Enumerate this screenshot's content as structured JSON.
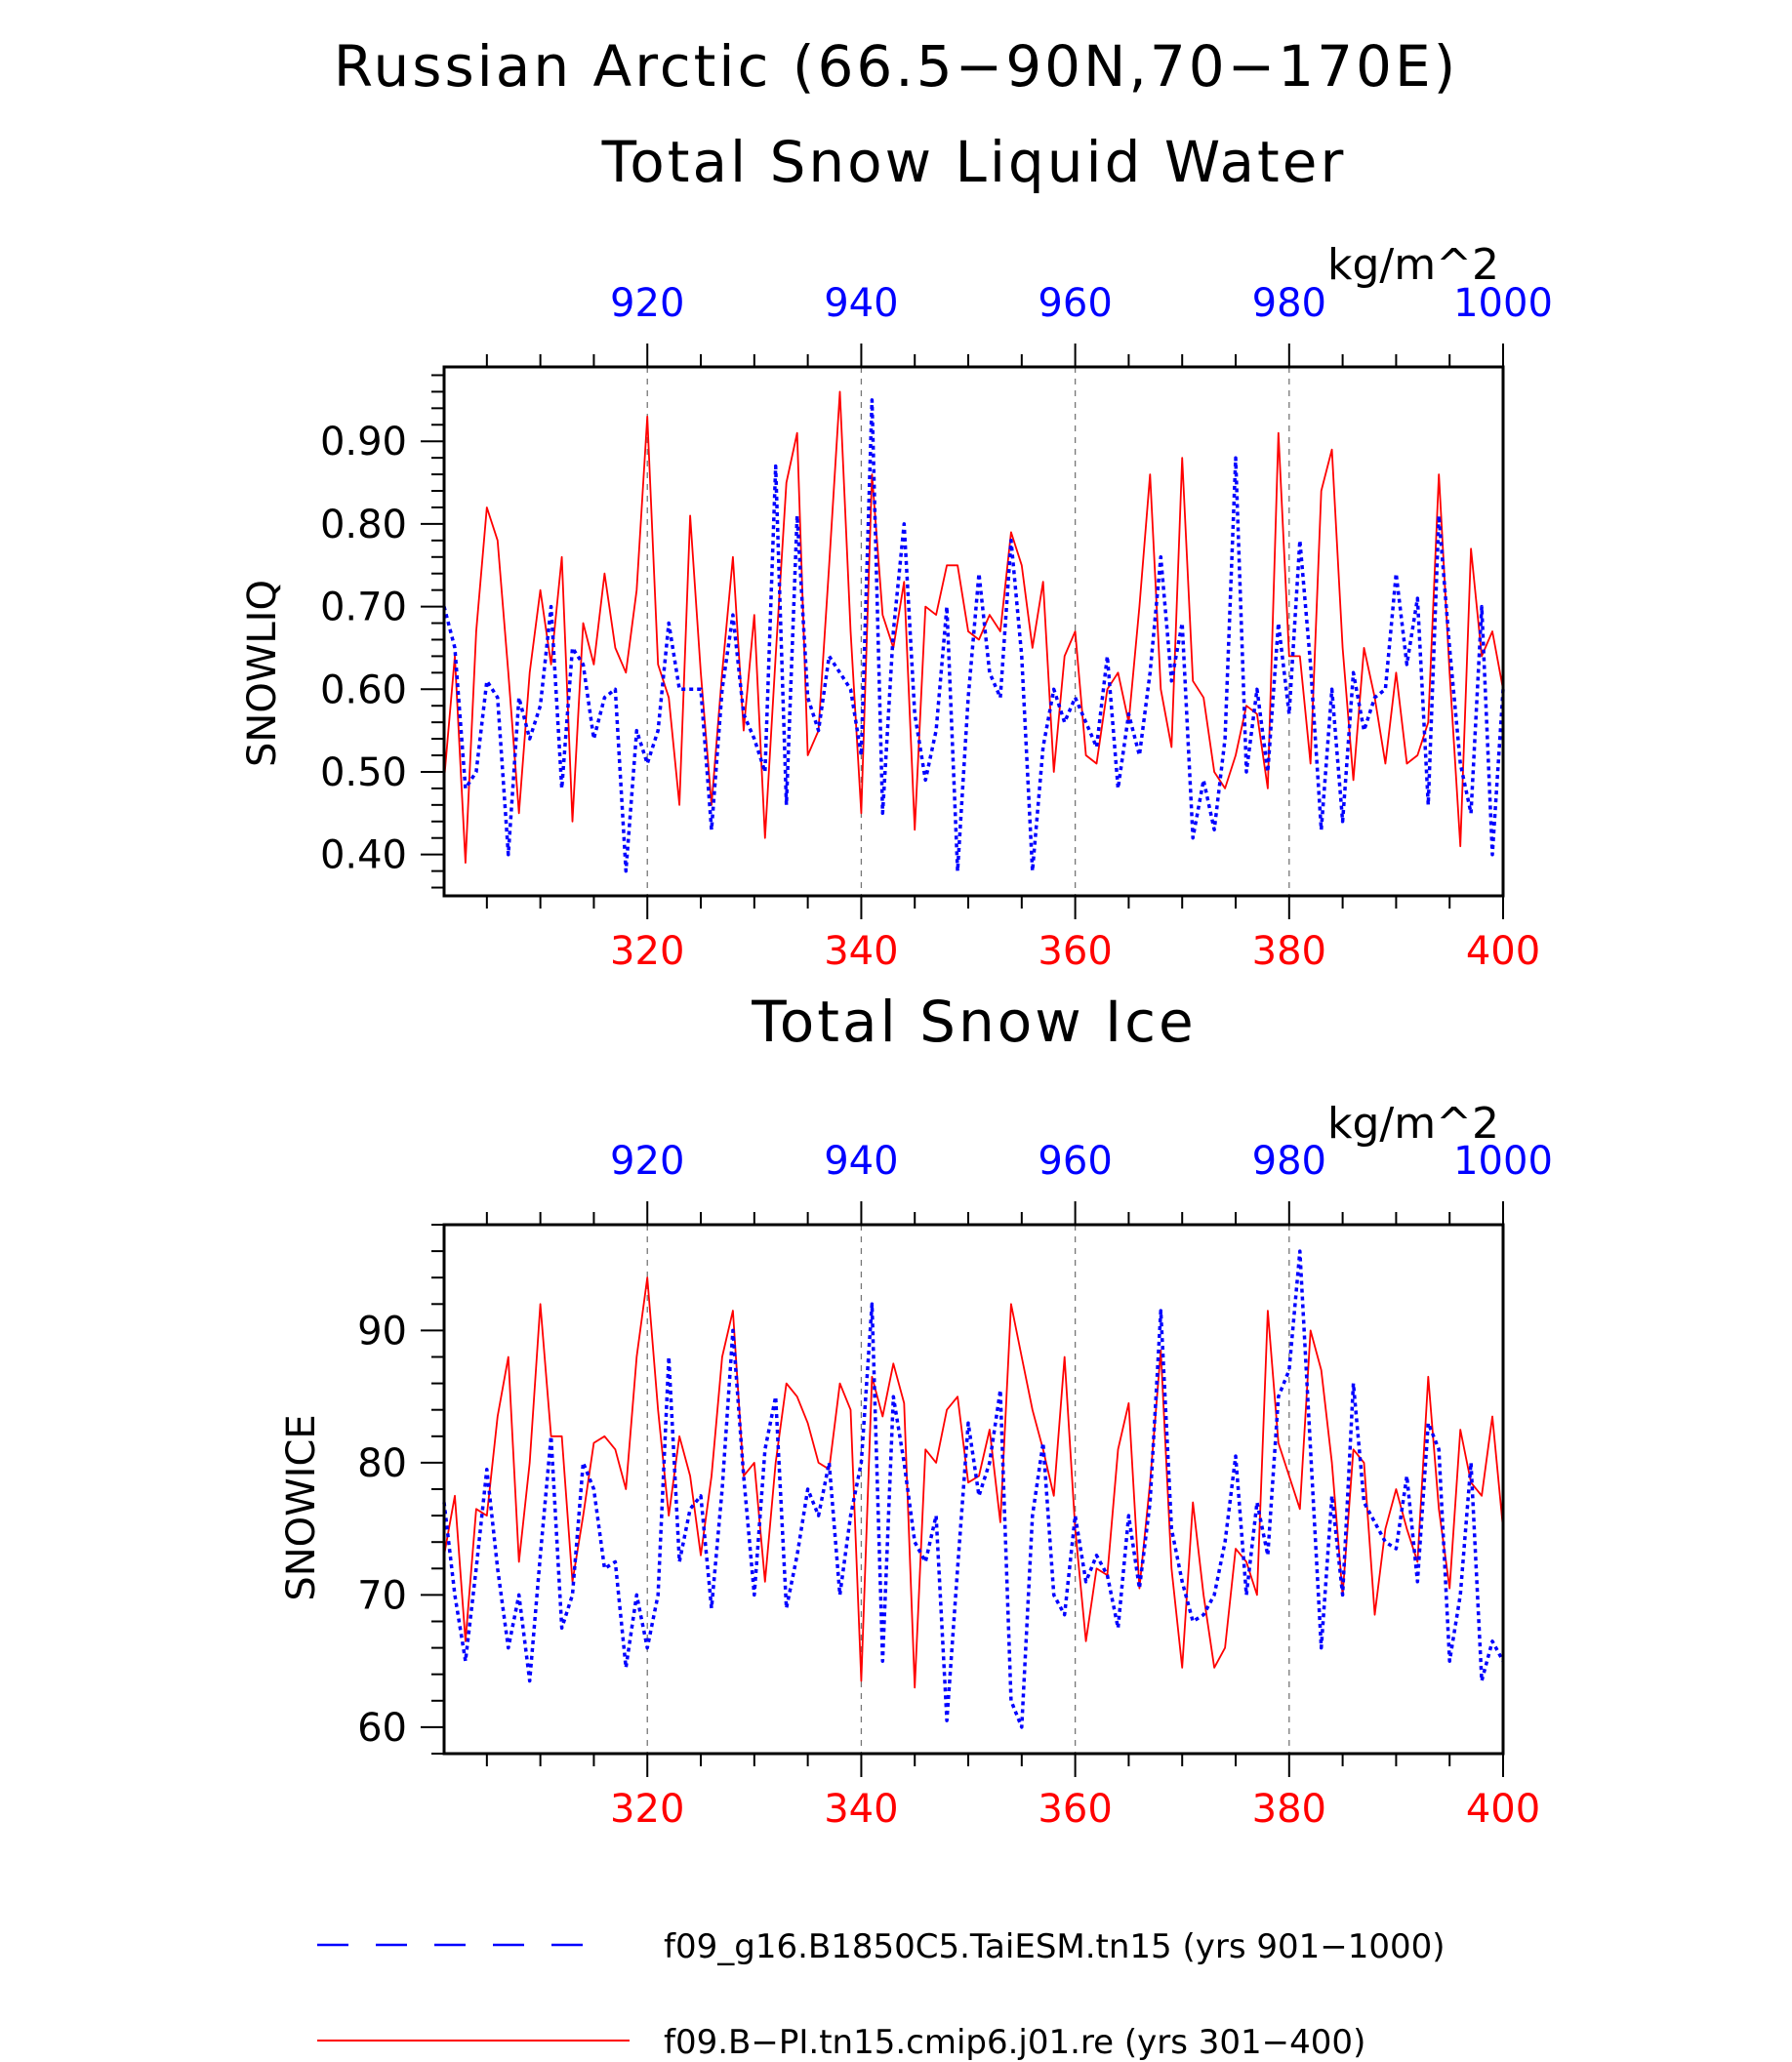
{
  "page": {
    "title_line1": "Russian Arctic (66.5−90N,70−170E)"
  },
  "colors": {
    "red": "#ff0000",
    "blue": "#0000ff",
    "axis": "#000000",
    "grid": "#777777"
  },
  "legend": {
    "position": "bottom-left",
    "entries": [
      {
        "label": "f09_g16.B1850C5.TaiESM.tn15 (yrs 901−1000)",
        "color": "#0000ff",
        "style": "dashed"
      },
      {
        "label": "f09.B−PI.tn15.cmip6.j01.re (yrs 301−400)",
        "color": "#ff0000",
        "style": "solid"
      }
    ]
  },
  "chart_data": [
    {
      "type": "line",
      "title": "Total Snow Liquid Water",
      "units_label": "kg/m^2",
      "ylabel": "SNOWLIQ",
      "ylim": [
        0.35,
        0.99
      ],
      "yticks": [
        "0.40",
        "0.50",
        "0.60",
        "0.70",
        "0.80",
        "0.90"
      ],
      "yticks_values": [
        0.4,
        0.5,
        0.6,
        0.7,
        0.8,
        0.9
      ],
      "x_bottom": {
        "range": [
          301,
          400
        ],
        "ticks": [
          320,
          340,
          360,
          380,
          400
        ],
        "color": "#ff0000"
      },
      "x_top": {
        "range": [
          901,
          1000
        ],
        "ticks": [
          920,
          940,
          960,
          980,
          1000
        ],
        "color": "#0000ff"
      },
      "vertical_grid": [
        320,
        340,
        360,
        380
      ],
      "series": [
        {
          "color": "#ff0000",
          "style": "solid",
          "axis": "bottom",
          "x_start": 301,
          "values": [
            0.49,
            0.64,
            0.39,
            0.67,
            0.82,
            0.78,
            0.62,
            0.45,
            0.62,
            0.72,
            0.63,
            0.76,
            0.44,
            0.68,
            0.63,
            0.74,
            0.65,
            0.62,
            0.72,
            0.93,
            0.63,
            0.59,
            0.46,
            0.81,
            0.62,
            0.46,
            0.62,
            0.76,
            0.55,
            0.69,
            0.42,
            0.64,
            0.85,
            0.91,
            0.52,
            0.55,
            0.75,
            0.96,
            0.67,
            0.45,
            0.86,
            0.69,
            0.65,
            0.73,
            0.43,
            0.7,
            0.69,
            0.75,
            0.75,
            0.67,
            0.66,
            0.69,
            0.67,
            0.79,
            0.75,
            0.65,
            0.73,
            0.5,
            0.64,
            0.67,
            0.52,
            0.51,
            0.6,
            0.62,
            0.56,
            0.7,
            0.86,
            0.6,
            0.53,
            0.88,
            0.61,
            0.59,
            0.5,
            0.48,
            0.52,
            0.58,
            0.57,
            0.48,
            0.91,
            0.64,
            0.64,
            0.51,
            0.84,
            0.89,
            0.65,
            0.49,
            0.65,
            0.59,
            0.51,
            0.62,
            0.51,
            0.52,
            0.56,
            0.86,
            0.62,
            0.41,
            0.77,
            0.64,
            0.67,
            0.6
          ]
        },
        {
          "color": "#0000ff",
          "style": "dashed",
          "axis": "top",
          "x_start": 901,
          "values": [
            0.7,
            0.65,
            0.48,
            0.5,
            0.61,
            0.59,
            0.4,
            0.59,
            0.54,
            0.58,
            0.7,
            0.48,
            0.65,
            0.63,
            0.54,
            0.59,
            0.6,
            0.38,
            0.55,
            0.51,
            0.55,
            0.68,
            0.6,
            0.6,
            0.6,
            0.43,
            0.6,
            0.69,
            0.57,
            0.54,
            0.5,
            0.87,
            0.46,
            0.81,
            0.59,
            0.55,
            0.64,
            0.62,
            0.6,
            0.52,
            0.95,
            0.45,
            0.67,
            0.8,
            0.57,
            0.49,
            0.55,
            0.7,
            0.38,
            0.59,
            0.74,
            0.62,
            0.59,
            0.78,
            0.64,
            0.38,
            0.53,
            0.6,
            0.56,
            0.59,
            0.56,
            0.53,
            0.64,
            0.48,
            0.57,
            0.52,
            0.62,
            0.76,
            0.61,
            0.68,
            0.42,
            0.49,
            0.43,
            0.54,
            0.88,
            0.5,
            0.6,
            0.5,
            0.68,
            0.57,
            0.78,
            0.63,
            0.43,
            0.6,
            0.44,
            0.62,
            0.55,
            0.59,
            0.6,
            0.74,
            0.63,
            0.71,
            0.46,
            0.81,
            0.65,
            0.51,
            0.45,
            0.7,
            0.4,
            0.6
          ]
        }
      ]
    },
    {
      "type": "line",
      "title": "Total Snow Ice",
      "units_label": "kg/m^2",
      "ylabel": "SNOWICE",
      "ylim": [
        58,
        98
      ],
      "yticks": [
        "60",
        "70",
        "80",
        "90"
      ],
      "yticks_values": [
        60,
        70,
        80,
        90
      ],
      "x_bottom": {
        "range": [
          301,
          400
        ],
        "ticks": [
          320,
          340,
          360,
          380,
          400
        ],
        "color": "#ff0000"
      },
      "x_top": {
        "range": [
          901,
          1000
        ],
        "ticks": [
          920,
          940,
          960,
          980,
          1000
        ],
        "color": "#0000ff"
      },
      "vertical_grid": [
        320,
        340,
        360,
        380
      ],
      "series": [
        {
          "color": "#ff0000",
          "style": "solid",
          "axis": "bottom",
          "x_start": 301,
          "values": [
            73,
            77.5,
            66.5,
            76.5,
            76,
            83.5,
            88,
            72.5,
            80,
            92,
            82,
            82,
            71,
            76,
            81.5,
            82,
            81,
            78,
            88,
            94,
            84,
            76,
            82,
            79,
            73,
            79,
            88,
            91.5,
            79,
            80,
            71,
            80,
            86,
            85,
            83,
            80,
            79.5,
            86,
            84,
            63.5,
            86.5,
            83.5,
            87.5,
            84.5,
            63,
            81,
            80,
            84,
            85,
            78.5,
            79,
            82.5,
            75.5,
            92,
            88,
            84,
            81,
            77.5,
            88,
            75,
            66.5,
            72,
            71.5,
            81,
            84.5,
            70.5,
            78.5,
            88.5,
            72,
            64.5,
            77,
            70,
            64.5,
            66,
            73.5,
            72.5,
            70,
            91.5,
            81.5,
            79,
            76.5,
            90,
            87,
            80,
            70,
            81,
            80,
            68.5,
            75,
            78,
            75,
            72.5,
            86.5,
            76.5,
            70.5,
            82.5,
            78.5,
            77.5,
            83.5,
            75
          ]
        },
        {
          "color": "#0000ff",
          "style": "dashed",
          "axis": "top",
          "x_start": 901,
          "values": [
            77,
            70,
            65,
            72,
            79.5,
            72,
            66,
            70,
            63.5,
            73,
            82,
            67.5,
            70,
            80,
            78,
            72,
            72.5,
            64.5,
            70,
            66,
            70,
            88,
            72.5,
            76.5,
            77.5,
            69,
            78,
            90,
            79,
            70,
            81,
            85,
            69,
            73,
            78,
            76,
            80,
            70,
            76,
            80,
            92,
            65,
            85,
            80,
            74,
            72.5,
            76,
            60.5,
            72,
            83,
            77.5,
            80,
            85.5,
            62,
            60,
            76,
            81.5,
            70,
            68.5,
            76,
            71,
            73,
            71.5,
            67.5,
            76,
            70.5,
            77,
            91.5,
            75,
            71,
            68,
            68.5,
            70,
            74,
            80.5,
            70,
            77,
            73,
            85,
            87,
            96,
            81,
            66,
            77.5,
            70,
            86,
            77,
            75.5,
            74,
            73.5,
            79,
            71,
            83,
            81,
            65,
            70,
            80,
            63.5,
            66.5,
            65
          ]
        }
      ]
    }
  ]
}
